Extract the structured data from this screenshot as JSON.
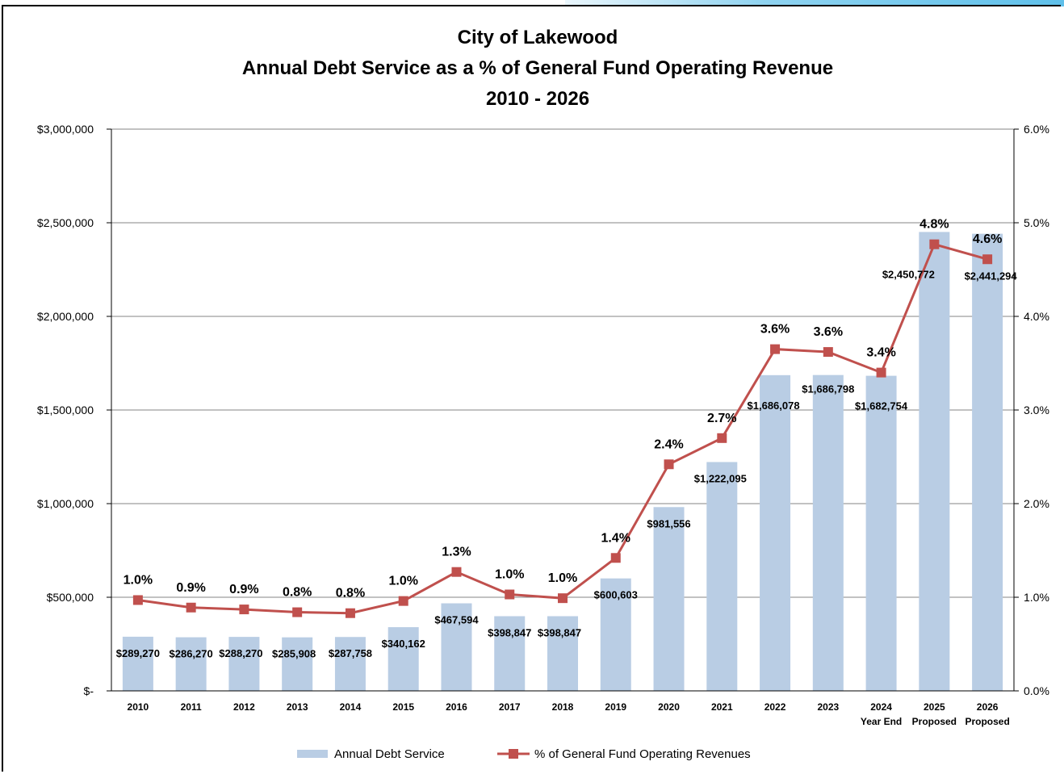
{
  "chart_data": {
    "type": "bar",
    "title": [
      "City of Lakewood",
      "Annual Debt Service as a % of General Fund Operating Revenue",
      "2010 - 2026"
    ],
    "categories": [
      [
        "2010"
      ],
      [
        "2011"
      ],
      [
        "2012"
      ],
      [
        "2013"
      ],
      [
        "2014"
      ],
      [
        "2015"
      ],
      [
        "2016"
      ],
      [
        "2017"
      ],
      [
        "2018"
      ],
      [
        "2019"
      ],
      [
        "2020"
      ],
      [
        "2021"
      ],
      [
        "2022"
      ],
      [
        "2023"
      ],
      [
        "2024",
        "Year End"
      ],
      [
        "2025",
        "Proposed"
      ],
      [
        "2026",
        "Proposed"
      ]
    ],
    "series": [
      {
        "name": "Annual Debt Service",
        "type": "bar",
        "axis": "left",
        "color": "#b9cde4",
        "values": [
          289270,
          286270,
          288270,
          285908,
          287758,
          340162,
          467594,
          398847,
          398847,
          600603,
          981556,
          1222095,
          1686078,
          1686798,
          1682754,
          2450772,
          2441294
        ],
        "labels": [
          "$289,270",
          "$286,270",
          "$288,270",
          "$285,908",
          "$287,758",
          "$340,162",
          "$467,594",
          "$398,847",
          "$398,847",
          "$600,603",
          "$981,556",
          "$1,222,095",
          "$1,686,078",
          "$1,686,798",
          "$1,682,754",
          "$2,450,772",
          "$2,441,294"
        ]
      },
      {
        "name": "% of General Fund Operating Revenues",
        "type": "line",
        "axis": "right",
        "color": "#c0504d",
        "values": [
          0.97,
          0.89,
          0.87,
          0.84,
          0.83,
          0.96,
          1.27,
          1.03,
          0.99,
          1.42,
          2.42,
          2.7,
          3.65,
          3.62,
          3.4,
          4.77,
          4.61
        ],
        "labels": [
          "1.0%",
          "0.9%",
          "0.9%",
          "0.8%",
          "0.8%",
          "1.0%",
          "1.3%",
          "1.0%",
          "1.0%",
          "1.4%",
          "2.4%",
          "2.7%",
          "3.6%",
          "3.6%",
          "3.4%",
          "4.8%",
          "4.6%"
        ]
      }
    ],
    "y_left": {
      "min": 0,
      "max": 3000000,
      "step": 500000,
      "tick_labels": [
        "$-",
        "$500,000",
        "$1,000,000",
        "$1,500,000",
        "$2,000,000",
        "$2,500,000",
        "$3,000,000"
      ]
    },
    "y_right": {
      "min": 0,
      "max": 6,
      "step": 1,
      "tick_labels": [
        "0.0%",
        "1.0%",
        "2.0%",
        "3.0%",
        "4.0%",
        "5.0%",
        "6.0%"
      ]
    },
    "grid": true,
    "legend": "bottom-center"
  }
}
